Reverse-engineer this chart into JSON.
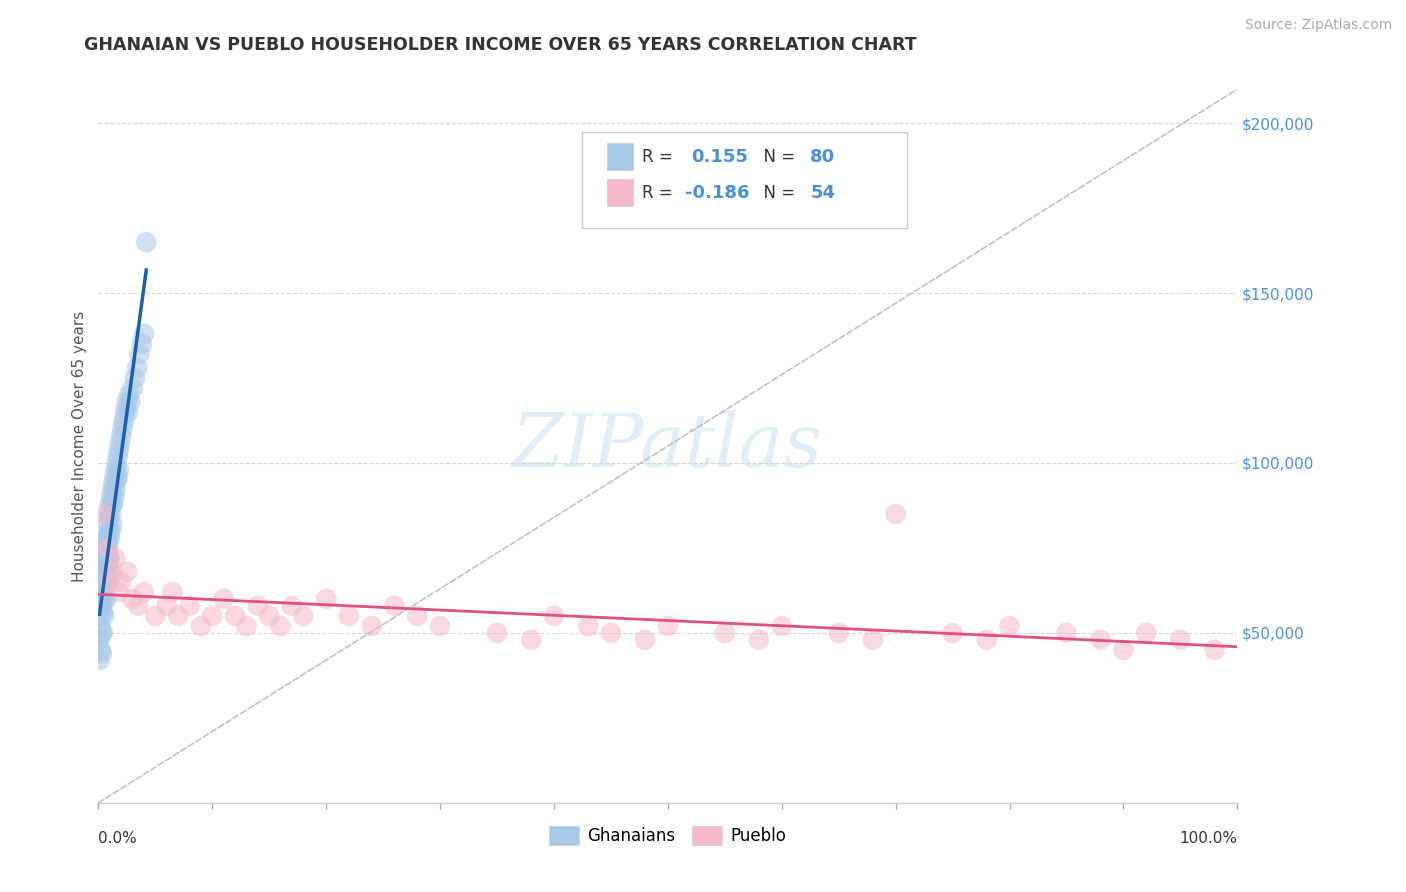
{
  "title": "GHANAIAN VS PUEBLO HOUSEHOLDER INCOME OVER 65 YEARS CORRELATION CHART",
  "source": "Source: ZipAtlas.com",
  "ylabel": "Householder Income Over 65 years",
  "xlim": [
    0,
    1.0
  ],
  "ylim": [
    0,
    210000
  ],
  "yticks": [
    50000,
    100000,
    150000,
    200000
  ],
  "ytick_labels": [
    "$50,000",
    "$100,000",
    "$150,000",
    "$200,000"
  ],
  "background_color": "#ffffff",
  "grid_color": "#cccccc",
  "ghanaian_color": "#a8c8e8",
  "pueblo_color": "#f5b8c8",
  "ghanaian_line_color": "#1a5fa8",
  "pueblo_line_color": "#e05080",
  "trend_line_color": "#bbbbbb",
  "R_ghanaian": 0.155,
  "N_ghanaian": 80,
  "R_pueblo": -0.186,
  "N_pueblo": 54,
  "watermark_text": "ZIPatlas",
  "ghanaian_x": [
    0.001,
    0.001,
    0.001,
    0.002,
    0.002,
    0.002,
    0.002,
    0.003,
    0.003,
    0.003,
    0.003,
    0.003,
    0.004,
    0.004,
    0.004,
    0.004,
    0.004,
    0.005,
    0.005,
    0.005,
    0.005,
    0.005,
    0.006,
    0.006,
    0.006,
    0.006,
    0.007,
    0.007,
    0.007,
    0.007,
    0.007,
    0.008,
    0.008,
    0.008,
    0.008,
    0.008,
    0.009,
    0.009,
    0.009,
    0.009,
    0.009,
    0.01,
    0.01,
    0.01,
    0.01,
    0.011,
    0.011,
    0.011,
    0.012,
    0.012,
    0.012,
    0.013,
    0.013,
    0.014,
    0.014,
    0.015,
    0.015,
    0.016,
    0.016,
    0.017,
    0.017,
    0.018,
    0.018,
    0.019,
    0.02,
    0.021,
    0.022,
    0.023,
    0.024,
    0.025,
    0.026,
    0.027,
    0.028,
    0.03,
    0.032,
    0.034,
    0.036,
    0.038,
    0.04,
    0.042
  ],
  "ghanaian_y": [
    55000,
    48000,
    42000,
    60000,
    58000,
    52000,
    45000,
    65000,
    62000,
    58000,
    50000,
    44000,
    68000,
    64000,
    60000,
    56000,
    50000,
    70000,
    68000,
    65000,
    60000,
    55000,
    75000,
    72000,
    68000,
    62000,
    78000,
    75000,
    70000,
    65000,
    60000,
    82000,
    78000,
    74000,
    70000,
    65000,
    85000,
    80000,
    76000,
    72000,
    68000,
    88000,
    84000,
    78000,
    72000,
    90000,
    85000,
    80000,
    92000,
    88000,
    82000,
    94000,
    88000,
    96000,
    90000,
    98000,
    92000,
    100000,
    95000,
    102000,
    96000,
    104000,
    98000,
    106000,
    108000,
    110000,
    112000,
    114000,
    116000,
    118000,
    115000,
    120000,
    118000,
    122000,
    125000,
    128000,
    132000,
    135000,
    138000,
    165000
  ],
  "pueblo_x": [
    0.005,
    0.008,
    0.01,
    0.012,
    0.015,
    0.018,
    0.02,
    0.025,
    0.03,
    0.035,
    0.04,
    0.05,
    0.06,
    0.065,
    0.07,
    0.08,
    0.09,
    0.1,
    0.11,
    0.12,
    0.13,
    0.14,
    0.15,
    0.16,
    0.17,
    0.18,
    0.2,
    0.22,
    0.24,
    0.26,
    0.28,
    0.3,
    0.35,
    0.38,
    0.4,
    0.43,
    0.45,
    0.48,
    0.5,
    0.55,
    0.58,
    0.6,
    0.65,
    0.68,
    0.7,
    0.75,
    0.78,
    0.8,
    0.85,
    0.88,
    0.9,
    0.92,
    0.95,
    0.98
  ],
  "pueblo_y": [
    85000,
    75000,
    65000,
    68000,
    72000,
    62000,
    65000,
    68000,
    60000,
    58000,
    62000,
    55000,
    58000,
    62000,
    55000,
    58000,
    52000,
    55000,
    60000,
    55000,
    52000,
    58000,
    55000,
    52000,
    58000,
    55000,
    60000,
    55000,
    52000,
    58000,
    55000,
    52000,
    50000,
    48000,
    55000,
    52000,
    50000,
    48000,
    52000,
    50000,
    48000,
    52000,
    50000,
    48000,
    85000,
    50000,
    48000,
    52000,
    50000,
    48000,
    45000,
    50000,
    48000,
    45000
  ]
}
